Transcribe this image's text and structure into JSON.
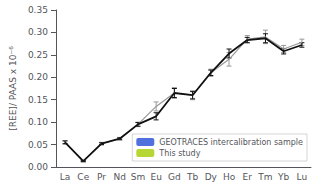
{
  "chart_data": {
    "type": "line",
    "categories": [
      "La",
      "Ce",
      "Pr",
      "Nd",
      "Sm",
      "Eu",
      "Gd",
      "Tb",
      "Dy",
      "Ho",
      "Er",
      "Tm",
      "Yb",
      "Lu"
    ],
    "series": [
      {
        "name": "GEOTRACES intercalibration sample",
        "color": "#999999",
        "values": [
          0.055,
          0.013,
          0.052,
          0.063,
          0.095,
          0.135,
          0.165,
          0.16,
          0.21,
          0.24,
          0.285,
          0.29,
          0.263,
          0.278
        ],
        "errors": [
          0.004,
          0.002,
          0.003,
          0.003,
          0.005,
          0.01,
          0.012,
          0.01,
          0.008,
          0.015,
          0.008,
          0.015,
          0.008,
          0.007
        ]
      },
      {
        "name": "This study",
        "color": "#111111",
        "values": [
          0.055,
          0.013,
          0.052,
          0.063,
          0.095,
          0.113,
          0.165,
          0.16,
          0.21,
          0.253,
          0.283,
          0.287,
          0.258,
          0.272
        ],
        "errors": [
          0.003,
          0.001,
          0.002,
          0.002,
          0.004,
          0.008,
          0.01,
          0.008,
          0.006,
          0.01,
          0.006,
          0.01,
          0.006,
          0.005
        ]
      }
    ],
    "ylabel": "[REE]/ PAAS x 10⁻⁶",
    "ylim": [
      0.0,
      0.35
    ],
    "yticks": [
      {
        "value": 0.0,
        "label": "0.00"
      },
      0.05,
      {
        "value": 0.1,
        "label": "0.10"
      },
      0.15,
      {
        "value": 0.2,
        "label": "0.20"
      },
      0.25,
      {
        "value": 0.3,
        "label": "0.30"
      },
      0.35
    ],
    "grid": false,
    "legend": "lower right"
  }
}
